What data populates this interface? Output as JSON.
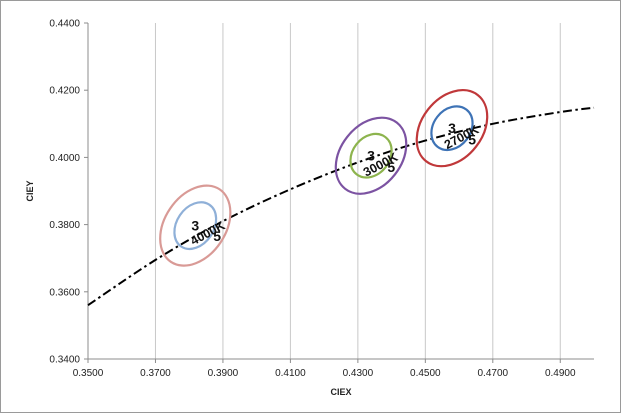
{
  "chart_data": {
    "type": "scatter",
    "title": "",
    "xlabel": "CIEX",
    "ylabel": "CIEY",
    "xlim": [
      0.35,
      0.5
    ],
    "ylim": [
      0.34,
      0.44
    ],
    "x_ticks": [
      "0.3500",
      "0.3700",
      "0.3900",
      "0.4100",
      "0.4300",
      "0.4500",
      "0.4700",
      "0.4900"
    ],
    "y_ticks": [
      "0.3400",
      "0.3600",
      "0.3800",
      "0.4000",
      "0.4200",
      "0.4400"
    ],
    "grid": "vertical",
    "series": [
      {
        "kind": "curve",
        "style": "dash-dot",
        "color": "#000000",
        "points": [
          [
            0.35,
            0.356
          ],
          [
            0.37,
            0.3695
          ],
          [
            0.39,
            0.381
          ],
          [
            0.41,
            0.3905
          ],
          [
            0.43,
            0.3985
          ],
          [
            0.45,
            0.405
          ],
          [
            0.47,
            0.41
          ],
          [
            0.49,
            0.4135
          ],
          [
            0.5,
            0.4148
          ]
        ]
      }
    ],
    "ellipse_groups": [
      {
        "label": "4000K",
        "center": [
          0.3818,
          0.3797
        ],
        "ellipses": [
          {
            "step": "3",
            "color": "#8fb0d8",
            "rx": 0.0055,
            "ry": 0.0075,
            "angle": -56
          },
          {
            "step": "5",
            "color": "#d99a96",
            "rx": 0.009,
            "ry": 0.013,
            "angle": -56
          }
        ]
      },
      {
        "label": "3000K",
        "center": [
          0.4339,
          0.4005
        ],
        "ellipses": [
          {
            "step": "3",
            "color": "#8db44e",
            "rx": 0.0055,
            "ry": 0.007,
            "angle": -52
          },
          {
            "step": "5",
            "color": "#7c53a2",
            "rx": 0.009,
            "ry": 0.0125,
            "angle": -52
          }
        ]
      },
      {
        "label": "2700K",
        "center": [
          0.4579,
          0.4087
        ],
        "ellipses": [
          {
            "step": "3",
            "color": "#3e73b6",
            "rx": 0.0055,
            "ry": 0.007,
            "angle": -52
          },
          {
            "step": "5",
            "color": "#c0383a",
            "rx": 0.009,
            "ry": 0.0125,
            "angle": -52
          }
        ]
      }
    ]
  }
}
